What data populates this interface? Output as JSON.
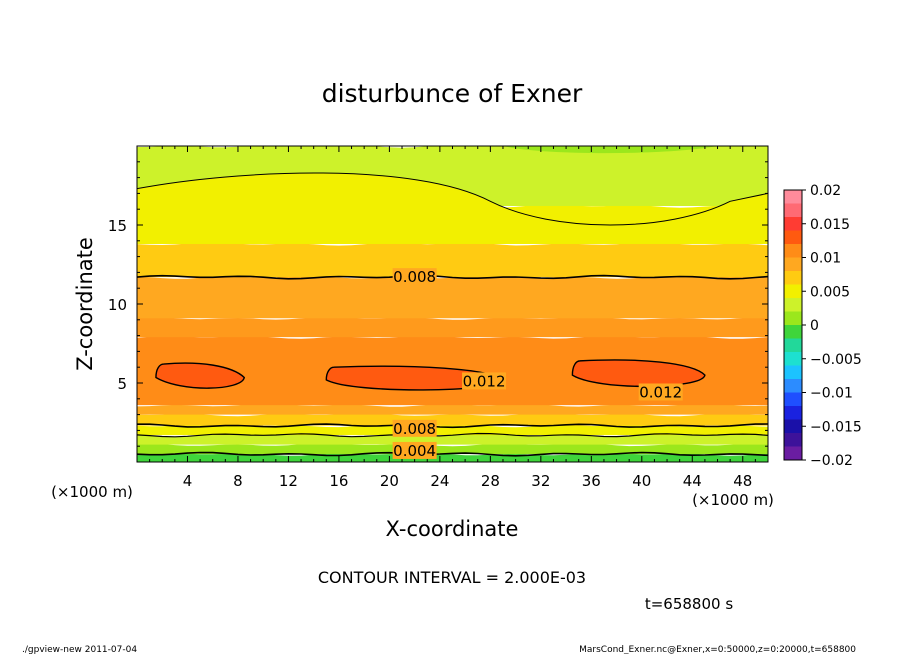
{
  "chart_data": {
    "type": "heatmap",
    "title": "disturbunce of Exner",
    "xlabel": "X-coordinate",
    "ylabel": "Z-coordinate",
    "x_unit": "(×1000 m)",
    "z_unit": "(×1000 m)",
    "xlim": [
      0,
      50
    ],
    "ylim": [
      0,
      20
    ],
    "x_ticks": [
      4,
      8,
      12,
      16,
      20,
      24,
      28,
      32,
      36,
      40,
      44,
      48
    ],
    "y_ticks": [
      5,
      10,
      15
    ],
    "colorbar": {
      "ticks": [
        0.02,
        0.015,
        0.01,
        0.005,
        0,
        -0.005,
        -0.01,
        -0.015,
        -0.02
      ],
      "tick_labels": [
        "0.02",
        "0.015",
        "0.01",
        "0.005",
        "0",
        "−0.005",
        "−0.01",
        "−0.015",
        "−0.02"
      ],
      "levels": [
        {
          "value": 0.019,
          "color": "#ff8b9b"
        },
        {
          "value": 0.017,
          "color": "#ff6a74"
        },
        {
          "value": 0.015,
          "color": "#ff3c33"
        },
        {
          "value": 0.013,
          "color": "#ff5a10"
        },
        {
          "value": 0.011,
          "color": "#ff8c17"
        },
        {
          "value": 0.009,
          "color": "#ffa820"
        },
        {
          "value": 0.007,
          "color": "#ffcb12"
        },
        {
          "value": 0.005,
          "color": "#f2f000"
        },
        {
          "value": 0.003,
          "color": "#cdf22a"
        },
        {
          "value": 0.001,
          "color": "#9be71c"
        },
        {
          "value": -0.001,
          "color": "#3fd53b"
        },
        {
          "value": -0.003,
          "color": "#22d89a"
        },
        {
          "value": -0.005,
          "color": "#1de0d0"
        },
        {
          "value": -0.007,
          "color": "#1cc3ff"
        },
        {
          "value": -0.009,
          "color": "#2c8cff"
        },
        {
          "value": -0.011,
          "color": "#1f4fff"
        },
        {
          "value": -0.013,
          "color": "#1a22e0"
        },
        {
          "value": -0.015,
          "color": "#1a10a8"
        },
        {
          "value": -0.017,
          "color": "#3d129a"
        },
        {
          "value": -0.019,
          "color": "#6a1da2"
        }
      ]
    },
    "contour_interval": "CONTOUR INTERVAL = 2.000E-03",
    "contour_labels": [
      {
        "text": "0.008",
        "x": 22,
        "z": 11.7
      },
      {
        "text": "0.012",
        "x": 27.5,
        "z": 5.1
      },
      {
        "text": "0.012",
        "x": 41.5,
        "z": 4.4
      },
      {
        "text": "0.008",
        "x": 22,
        "z": 2.1
      },
      {
        "text": "0.004",
        "x": 22,
        "z": 0.7
      }
    ],
    "bands": [
      {
        "z0": 0.0,
        "z1": 0.5,
        "color": "#3fd53b"
      },
      {
        "z0": 0.5,
        "z1": 1.1,
        "color": "#9be71c"
      },
      {
        "z0": 1.1,
        "z1": 1.7,
        "color": "#cdf22a"
      },
      {
        "z0": 1.7,
        "z1": 2.3,
        "color": "#f2f000"
      },
      {
        "z0": 2.3,
        "z1": 3.0,
        "color": "#ffcb12"
      },
      {
        "z0": 3.0,
        "z1": 3.6,
        "color": "#ffa820"
      },
      {
        "z0": 3.6,
        "z1": 7.9,
        "color": "#ff8c17"
      },
      {
        "z0": 7.9,
        "z1": 9.1,
        "color": "#ff9a1c"
      },
      {
        "z0": 9.1,
        "z1": 11.7,
        "color": "#ffa820"
      },
      {
        "z0": 11.7,
        "z1": 13.8,
        "color": "#ffcb12"
      },
      {
        "z0": 13.8,
        "z1": 16.2,
        "color": "#f2f000"
      },
      {
        "z0": 16.2,
        "z1": 20.0,
        "color": "#cdf22a"
      }
    ],
    "cells": [
      {
        "x0": 1.5,
        "x1": 8.5,
        "z0": 4.5,
        "z1": 6.2
      },
      {
        "x0": 15.0,
        "x1": 29.0,
        "z0": 4.4,
        "z1": 6.0
      },
      {
        "x0": 34.5,
        "x1": 45.0,
        "z0": 4.6,
        "z1": 6.4
      }
    ]
  },
  "time_label": "t=658800 s",
  "footer_left": "./gpview-new   2011-07-04",
  "footer_right": "MarsCond_Exner.nc@Exner,x=0:50000,z=0:20000,t=658800"
}
